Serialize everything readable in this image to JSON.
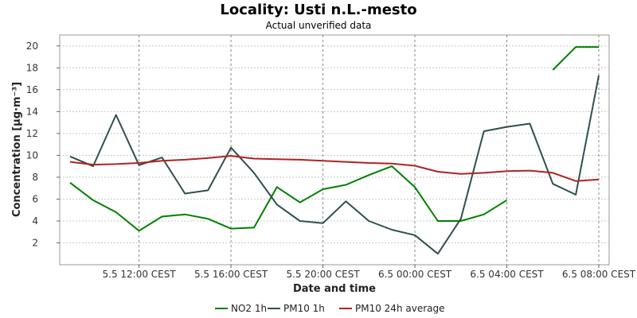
{
  "chart_data": {
    "type": "line",
    "title": "Locality: Usti n.L.-mesto",
    "subtitle": "Actual unverified data",
    "xlabel": "Date and time",
    "ylabel": "Concentration [µg·m⁻³]",
    "ylim": [
      0,
      21
    ],
    "yticks": [
      2,
      4,
      6,
      8,
      10,
      12,
      14,
      16,
      18,
      20
    ],
    "x": [
      "5.5 09:00",
      "5.5 10:00",
      "5.5 11:00",
      "5.5 12:00",
      "5.5 13:00",
      "5.5 14:00",
      "5.5 15:00",
      "5.5 16:00",
      "5.5 17:00",
      "5.5 18:00",
      "5.5 19:00",
      "5.5 20:00",
      "5.5 21:00",
      "5.5 22:00",
      "5.5 23:00",
      "6.5 00:00",
      "6.5 01:00",
      "6.5 02:00",
      "6.5 03:00",
      "6.5 04:00",
      "6.5 05:00",
      "6.5 06:00",
      "6.5 07:00",
      "6.5 08:00"
    ],
    "xticks": [
      {
        "x": "5.5 12:00",
        "label": "5.5 12:00 CEST"
      },
      {
        "x": "5.5 16:00",
        "label": "5.5 16:00 CEST"
      },
      {
        "x": "5.5 20:00",
        "label": "5.5 20:00 CEST"
      },
      {
        "x": "6.5 00:00",
        "label": "6.5 00:00 CEST"
      },
      {
        "x": "6.5 04:00",
        "label": "6.5 04:00 CEST"
      },
      {
        "x": "6.5 08:00",
        "label": "6.5 08:00 CEST"
      }
    ],
    "grid": true,
    "legend_position": "bottom",
    "series": [
      {
        "name": "NO2 1h",
        "color": "#008000",
        "values": [
          7.5,
          5.9,
          4.8,
          3.1,
          4.4,
          4.6,
          4.2,
          3.3,
          3.4,
          7.1,
          5.7,
          6.9,
          7.3,
          8.2,
          9.0,
          7.1,
          4.0,
          4.0,
          4.6,
          5.9,
          null,
          17.8,
          19.9,
          19.9
        ]
      },
      {
        "name": "PM10 1h",
        "color": "#2f4f4f",
        "values": [
          9.9,
          9.0,
          13.7,
          9.1,
          9.8,
          6.5,
          6.8,
          10.7,
          8.4,
          5.5,
          4.0,
          3.8,
          5.8,
          4.0,
          3.2,
          2.7,
          1.0,
          4.2,
          12.2,
          12.6,
          12.9,
          7.4,
          6.4,
          17.3
        ]
      },
      {
        "name": "PM10 24h average",
        "color": "#b22222",
        "values": [
          9.4,
          9.15,
          9.2,
          9.3,
          9.5,
          9.6,
          9.75,
          9.95,
          9.7,
          9.65,
          9.6,
          9.5,
          9.4,
          9.3,
          9.25,
          9.05,
          8.5,
          8.3,
          8.4,
          8.55,
          8.6,
          8.4,
          7.65,
          7.8
        ]
      }
    ]
  }
}
